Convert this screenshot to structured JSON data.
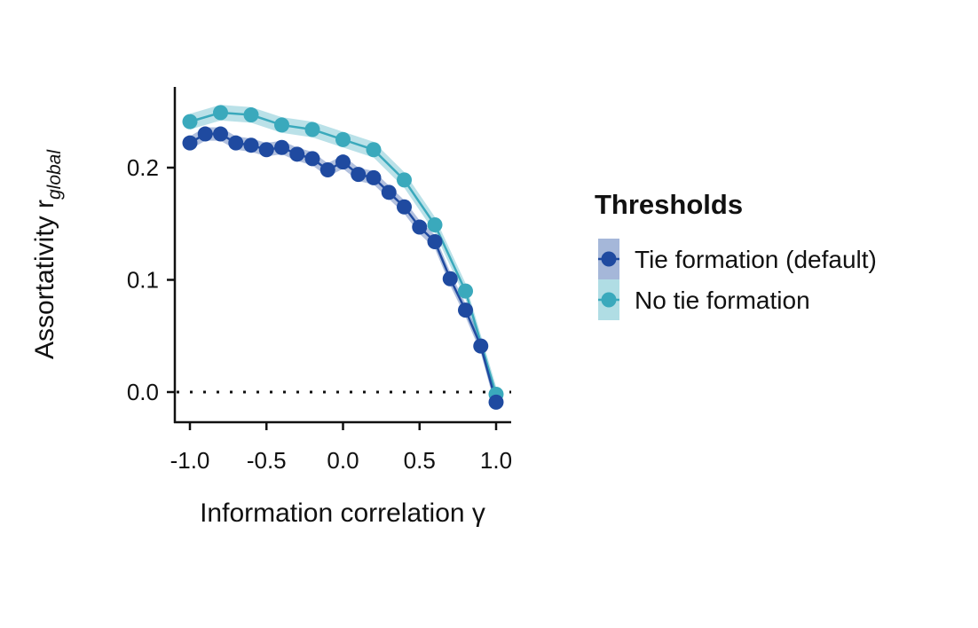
{
  "chart_data": {
    "type": "line",
    "xlabel": "Information correlation γ",
    "ylabel": "Assortativity r",
    "ylabel_subscript": "global",
    "xlim": [
      -1.1,
      1.1
    ],
    "ylim": [
      -0.026,
      0.27
    ],
    "xticks": [
      -1.0,
      -0.5,
      0.0,
      0.5,
      1.0
    ],
    "xtick_labels": [
      "-1.0",
      "-0.5",
      "0.0",
      "0.5",
      "1.0"
    ],
    "yticks": [
      0.0,
      0.1,
      0.2
    ],
    "ytick_labels": [
      "0.0",
      "0.1",
      "0.2"
    ],
    "reference_line": {
      "y": 0.0,
      "style": "dotted"
    },
    "grid": false,
    "legend": {
      "title": "Thresholds",
      "position": "right"
    },
    "series": [
      {
        "name": "Tie formation (default)",
        "color": "#1f4aa0",
        "band_color": "#1f4aa0",
        "x": [
          -1.0,
          -0.9,
          -0.8,
          -0.7,
          -0.6,
          -0.5,
          -0.4,
          -0.3,
          -0.2,
          -0.1,
          0.0,
          0.1,
          0.2,
          0.3,
          0.4,
          0.5,
          0.6,
          0.7,
          0.8,
          0.9,
          1.0
        ],
        "y": [
          0.222,
          0.23,
          0.23,
          0.222,
          0.22,
          0.216,
          0.218,
          0.212,
          0.208,
          0.198,
          0.205,
          0.194,
          0.191,
          0.178,
          0.165,
          0.147,
          0.134,
          0.101,
          0.073,
          0.041,
          -0.009
        ],
        "band_halfwidth": 0.006
      },
      {
        "name": "No tie formation",
        "color": "#3aa9bc",
        "band_color": "#3aa9bc",
        "x": [
          -1.0,
          -0.8,
          -0.6,
          -0.4,
          -0.2,
          0.0,
          0.2,
          0.4,
          0.6,
          0.8,
          1.0
        ],
        "y": [
          0.241,
          0.249,
          0.247,
          0.238,
          0.234,
          0.225,
          0.216,
          0.189,
          0.149,
          0.09,
          -0.002
        ],
        "band_halfwidth": 0.007
      }
    ]
  }
}
